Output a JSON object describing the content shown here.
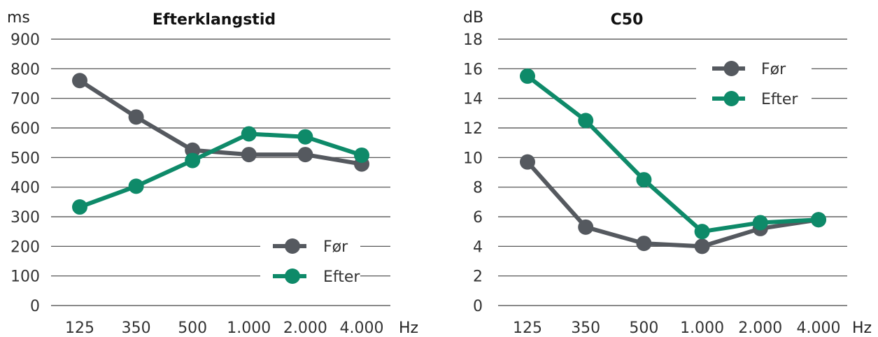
{
  "chart_data": [
    {
      "type": "line",
      "title": "Efterklangstid",
      "ylabel": "ms",
      "xlabel": "Hz",
      "categories": [
        "125",
        "350",
        "500",
        "1.000",
        "2.000",
        "4.000"
      ],
      "yticks": [
        "0",
        "100",
        "200",
        "300",
        "400",
        "500",
        "600",
        "700",
        "800",
        "900"
      ],
      "ylim": [
        0,
        900
      ],
      "grid": true,
      "legend_position": "bottom-right",
      "series": [
        {
          "name": "Før",
          "color": "#55595f",
          "values": [
            760,
            637,
            525,
            510,
            510,
            478
          ]
        },
        {
          "name": "Efter",
          "color": "#0e8a69",
          "values": [
            333,
            403,
            490,
            580,
            570,
            508
          ]
        }
      ]
    },
    {
      "type": "line",
      "title": "C50",
      "ylabel": "dB",
      "xlabel": "Hz",
      "categories": [
        "125",
        "350",
        "500",
        "1.000",
        "2.000",
        "4.000"
      ],
      "yticks": [
        "0",
        "2",
        "4",
        "6",
        "8",
        "10",
        "12",
        "14",
        "16",
        "18"
      ],
      "ylim": [
        0,
        18
      ],
      "grid": true,
      "legend_position": "top-right",
      "series": [
        {
          "name": "Før",
          "color": "#55595f",
          "values": [
            9.7,
            5.3,
            4.2,
            4.0,
            5.2,
            5.8
          ]
        },
        {
          "name": "Efter",
          "color": "#0e8a69",
          "values": [
            15.5,
            12.5,
            8.5,
            5.0,
            5.6,
            5.8
          ]
        }
      ]
    }
  ]
}
